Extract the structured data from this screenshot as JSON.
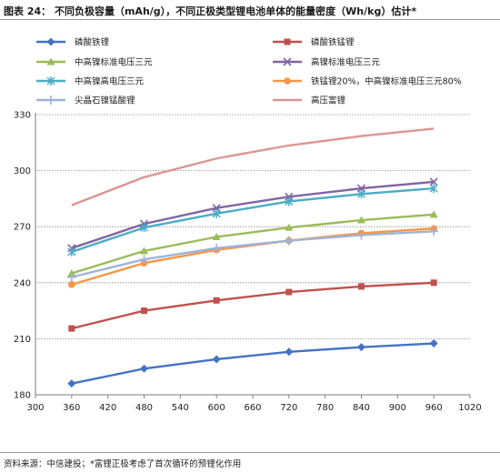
{
  "header": {
    "caption": "图表 24： 不同负极容量（mAh/g），不同正极类型锂电池单体的能量密度（Wh/kg）估计*"
  },
  "footer": {
    "source": "资料来源：中信建投；*富锂正极考虑了首次循环的预锂化作用"
  },
  "chart_data": {
    "type": "line",
    "title": "",
    "xlabel": "",
    "ylabel": "",
    "xlim": [
      300,
      1020
    ],
    "ylim": [
      180,
      330
    ],
    "x_ticks": [
      300,
      360,
      420,
      480,
      540,
      600,
      660,
      720,
      780,
      840,
      900,
      960,
      1020
    ],
    "y_ticks": [
      180,
      210,
      240,
      270,
      300,
      330
    ],
    "grid": "horizontal-dotted",
    "legend_position": "top",
    "x": [
      360,
      480,
      600,
      720,
      840,
      960
    ],
    "series": [
      {
        "name": "磷酸铁锂",
        "color": "#4472c4",
        "marker": "diamond",
        "values": [
          186,
          194,
          199,
          203,
          205.5,
          207.5
        ]
      },
      {
        "name": "磷酸铁锰锂",
        "color": "#c0504d",
        "marker": "square",
        "values": [
          215.5,
          225,
          230.5,
          235,
          238,
          240
        ]
      },
      {
        "name": "中高镍标准电压三元",
        "color": "#9bbb59",
        "marker": "triangle",
        "values": [
          245,
          257,
          264.5,
          269.5,
          273.5,
          276.5
        ]
      },
      {
        "name": "高镍标准电压三元",
        "color": "#8064a2",
        "marker": "x",
        "values": [
          258.5,
          271.5,
          280,
          286,
          290.5,
          294
        ]
      },
      {
        "name": "中高镍高电压三元",
        "color": "#4bacc6",
        "marker": "star",
        "values": [
          256.5,
          269.5,
          277,
          283.5,
          287.5,
          290.5
        ]
      },
      {
        "name": "铁锰锂20%，中高镍标准电压三元80%",
        "color": "#f79646",
        "marker": "circle",
        "values": [
          239,
          250.5,
          257.5,
          262.5,
          266.5,
          269
        ]
      },
      {
        "name": "尖晶石镍锰酸锂",
        "color": "#9db3d9",
        "marker": "plus",
        "values": [
          243,
          252.5,
          258.5,
          262.5,
          265.5,
          267.5
        ]
      },
      {
        "name": "高压富锂",
        "color": "#d99694",
        "marker": "none",
        "values": [
          281.5,
          296.5,
          306.5,
          313.5,
          318.5,
          322.5
        ]
      }
    ]
  }
}
